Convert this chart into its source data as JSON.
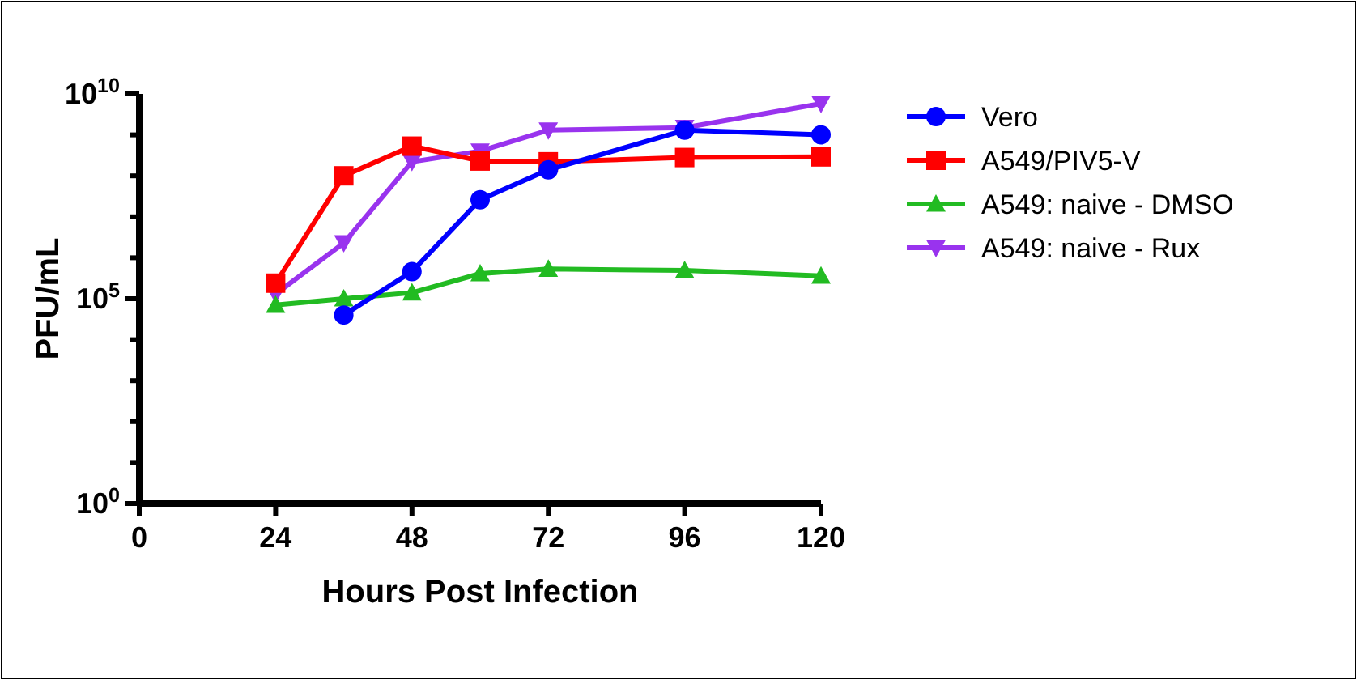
{
  "chart_data": {
    "type": "line",
    "xlabel": "Hours Post Infection",
    "ylabel": "PFU/mL",
    "log": "y",
    "xlim": [
      0,
      120
    ],
    "xticks": [
      0,
      24,
      48,
      72,
      96,
      120
    ],
    "ylim": [
      1,
      10000000000
    ],
    "yticks": [
      {
        "value": 1,
        "label": "10$^{0}$"
      },
      {
        "value": 10,
        "label": null
      },
      {
        "value": 100,
        "label": null
      },
      {
        "value": 1000,
        "label": null
      },
      {
        "value": 10000,
        "label": null
      },
      {
        "value": 100000,
        "label": "10$^{5}$"
      },
      {
        "value": 1000000,
        "label": null
      },
      {
        "value": 10000000,
        "label": null
      },
      {
        "value": 100000000,
        "label": null
      },
      {
        "value": 1000000000,
        "label": null
      },
      {
        "value": 10000000000,
        "label": "10$^{10}$"
      }
    ],
    "grid": false,
    "legend": "right",
    "line_style": "solid",
    "series": [
      {
        "name": "Vero",
        "color": "#0000ff",
        "marker": "circle",
        "x": [
          36,
          48,
          60,
          72,
          96,
          120
        ],
        "values": [
          40000,
          460000,
          26000000,
          140000000,
          1300000000,
          1000000000
        ]
      },
      {
        "name": "A549/PIV5-V",
        "color": "#ff0000",
        "marker": "square",
        "x": [
          24,
          36,
          48,
          60,
          72,
          96,
          120
        ],
        "values": [
          240000,
          100000000,
          530000000,
          230000000,
          220000000,
          280000000,
          290000000
        ]
      },
      {
        "name": "A549: naive - DMSO",
        "color": "#22bb22",
        "marker": "triangle",
        "x": [
          24,
          36,
          48,
          60,
          72,
          96,
          120
        ],
        "values": [
          70000,
          100000,
          140000,
          410000,
          530000,
          490000,
          360000
        ]
      },
      {
        "name": "A549: naive - Rux",
        "color": "#9933ee",
        "marker": "triangle-down",
        "x": [
          24,
          36,
          48,
          60,
          72,
          96,
          120
        ],
        "values": [
          130000,
          2300000,
          220000000,
          400000000,
          1300000000,
          1500000000,
          5800000000
        ]
      }
    ]
  }
}
